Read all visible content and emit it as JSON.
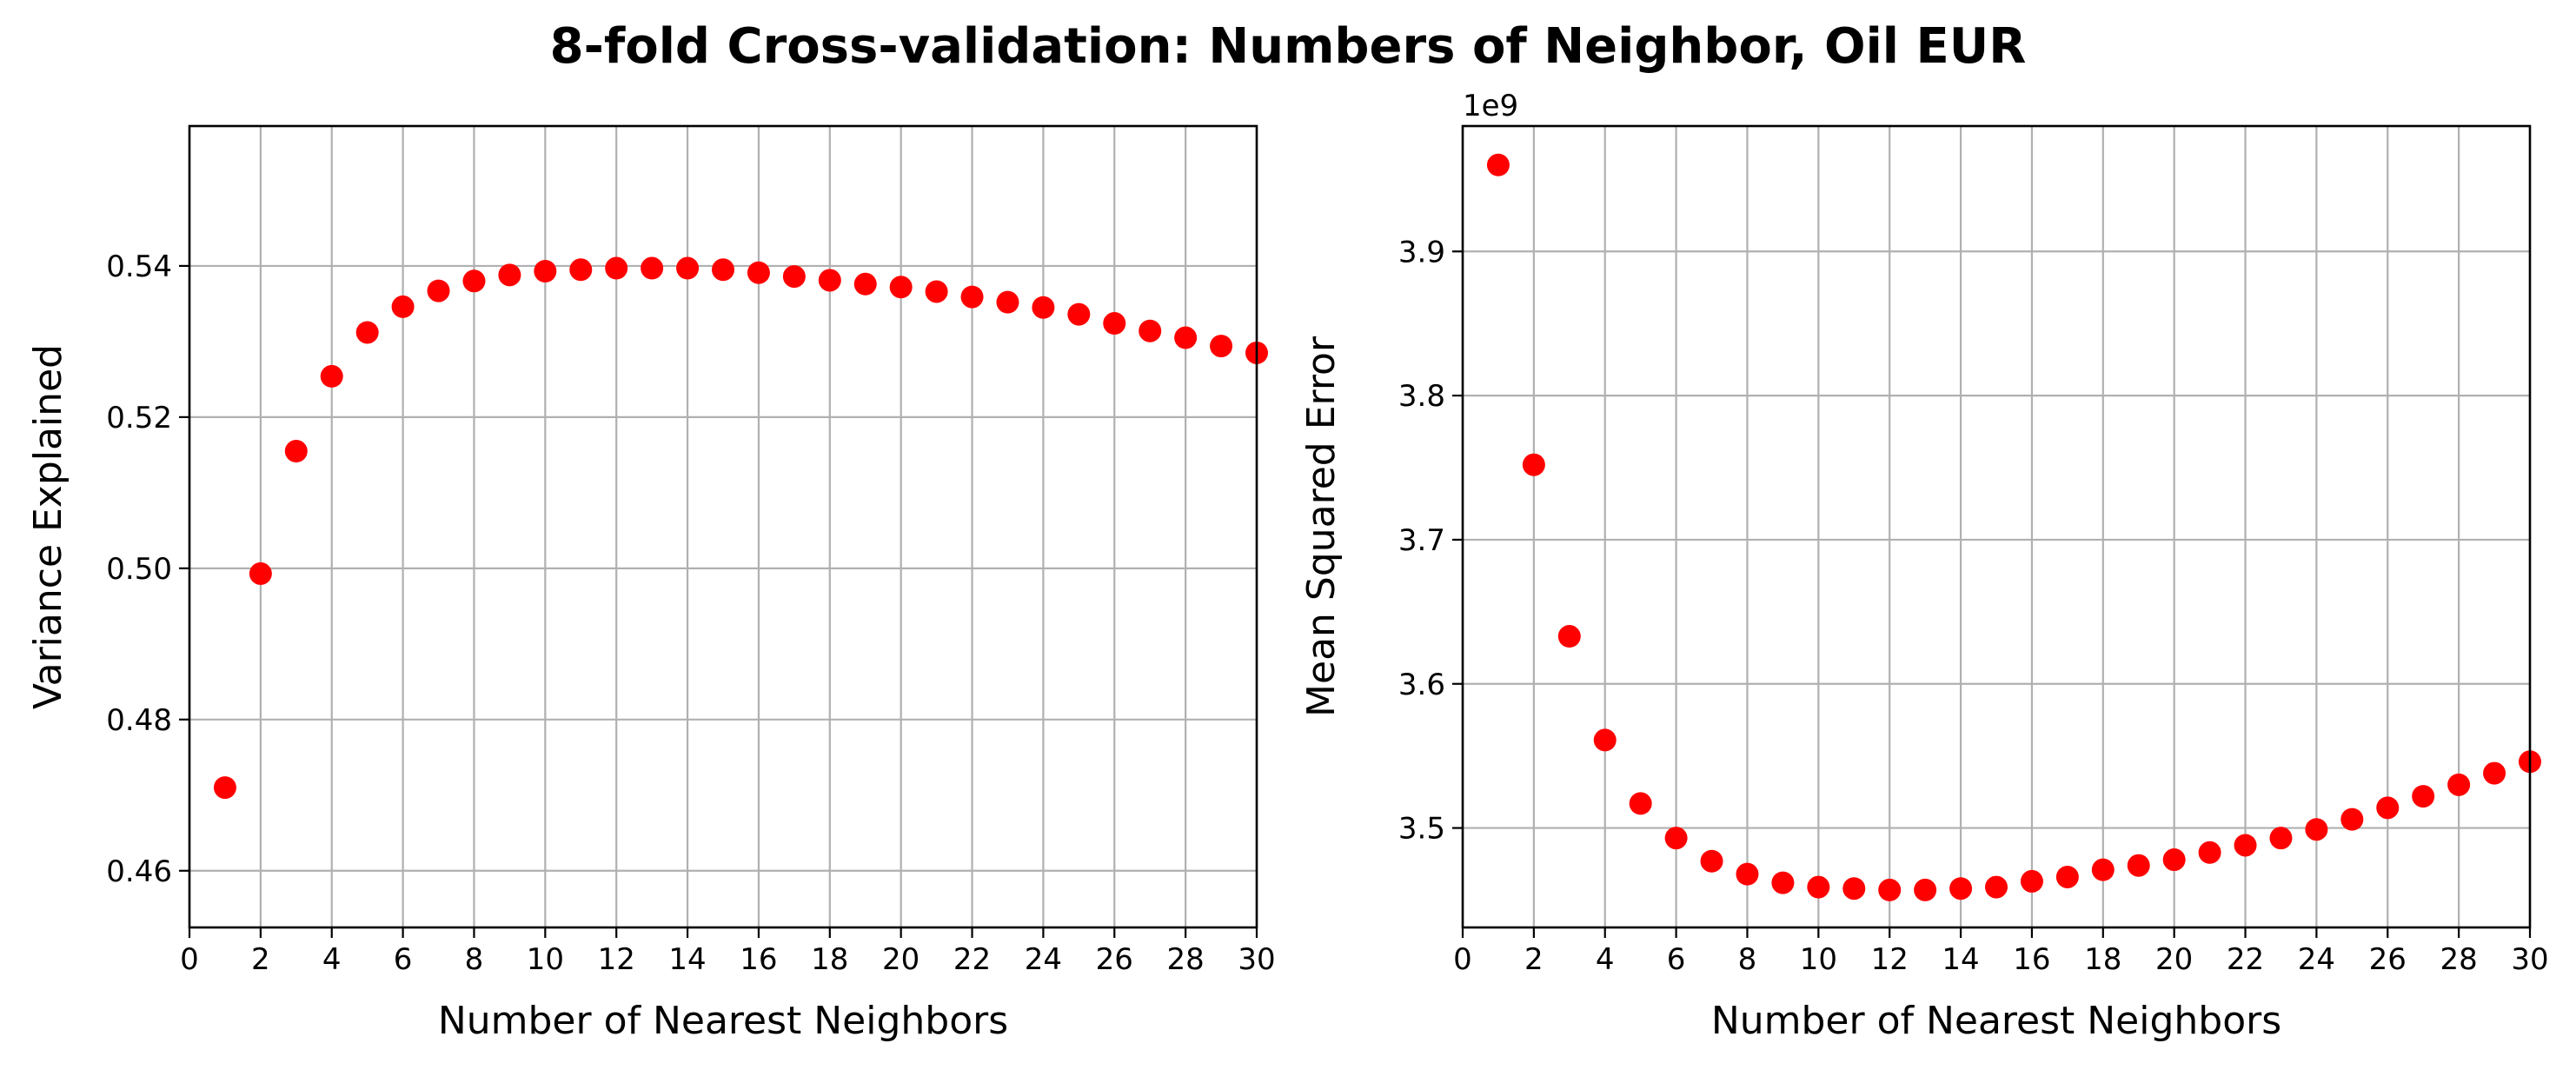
{
  "figure_title": "8-fold Cross-validation: Numbers of Neighbor, Oil EUR",
  "colors": {
    "marker": "#ff0000",
    "grid": "#b0b0b0",
    "axes": "#000000"
  },
  "chart_data": [
    {
      "type": "scatter",
      "xlabel": "Number of Nearest Neighbors",
      "ylabel": "Variance Explained",
      "xlim": [
        0,
        30
      ],
      "ylim": [
        0.4525,
        0.5585
      ],
      "xticks": [
        0,
        2,
        4,
        6,
        8,
        10,
        12,
        14,
        16,
        18,
        20,
        22,
        24,
        26,
        28,
        30
      ],
      "yticks": [
        0.46,
        0.48,
        0.5,
        0.52,
        0.54
      ],
      "ytick_labels": [
        "0.46",
        "0.48",
        "0.50",
        "0.52",
        "0.54"
      ],
      "offset_text": "",
      "grid": true,
      "x": [
        1,
        2,
        3,
        4,
        5,
        6,
        7,
        8,
        9,
        10,
        11,
        12,
        13,
        14,
        15,
        16,
        17,
        18,
        19,
        20,
        21,
        22,
        23,
        24,
        25,
        26,
        27,
        28,
        29,
        30
      ],
      "y": [
        0.471,
        0.4993,
        0.5155,
        0.5254,
        0.5312,
        0.5346,
        0.5367,
        0.538,
        0.5388,
        0.5393,
        0.5395,
        0.5397,
        0.5397,
        0.5397,
        0.5395,
        0.5391,
        0.5386,
        0.5381,
        0.5376,
        0.5372,
        0.5366,
        0.5359,
        0.5352,
        0.5345,
        0.5336,
        0.5324,
        0.5314,
        0.5305,
        0.5294,
        0.5285
      ]
    },
    {
      "type": "scatter",
      "xlabel": "Number of Nearest Neighbors",
      "ylabel": "Mean Squared Error",
      "xlim": [
        0,
        30
      ],
      "ylim": [
        3.431,
        3.987
      ],
      "xticks": [
        0,
        2,
        4,
        6,
        8,
        10,
        12,
        14,
        16,
        18,
        20,
        22,
        24,
        26,
        28,
        30
      ],
      "yticks": [
        3.5,
        3.6,
        3.7,
        3.8,
        3.9
      ],
      "ytick_labels": [
        "3.5",
        "3.6",
        "3.7",
        "3.8",
        "3.9"
      ],
      "offset_text": "1e9",
      "grid": true,
      "x": [
        1,
        2,
        3,
        4,
        5,
        6,
        7,
        8,
        9,
        10,
        11,
        12,
        13,
        14,
        15,
        16,
        17,
        18,
        19,
        20,
        21,
        22,
        23,
        24,
        25,
        26,
        27,
        28,
        29,
        30
      ],
      "y": [
        3.96,
        3.752,
        3.633,
        3.561,
        3.517,
        3.493,
        3.477,
        3.468,
        3.462,
        3.459,
        3.458,
        3.457,
        3.457,
        3.458,
        3.459,
        3.463,
        3.466,
        3.471,
        3.474,
        3.478,
        3.483,
        3.488,
        3.493,
        3.499,
        3.506,
        3.514,
        3.522,
        3.53,
        3.538,
        3.546
      ]
    }
  ]
}
